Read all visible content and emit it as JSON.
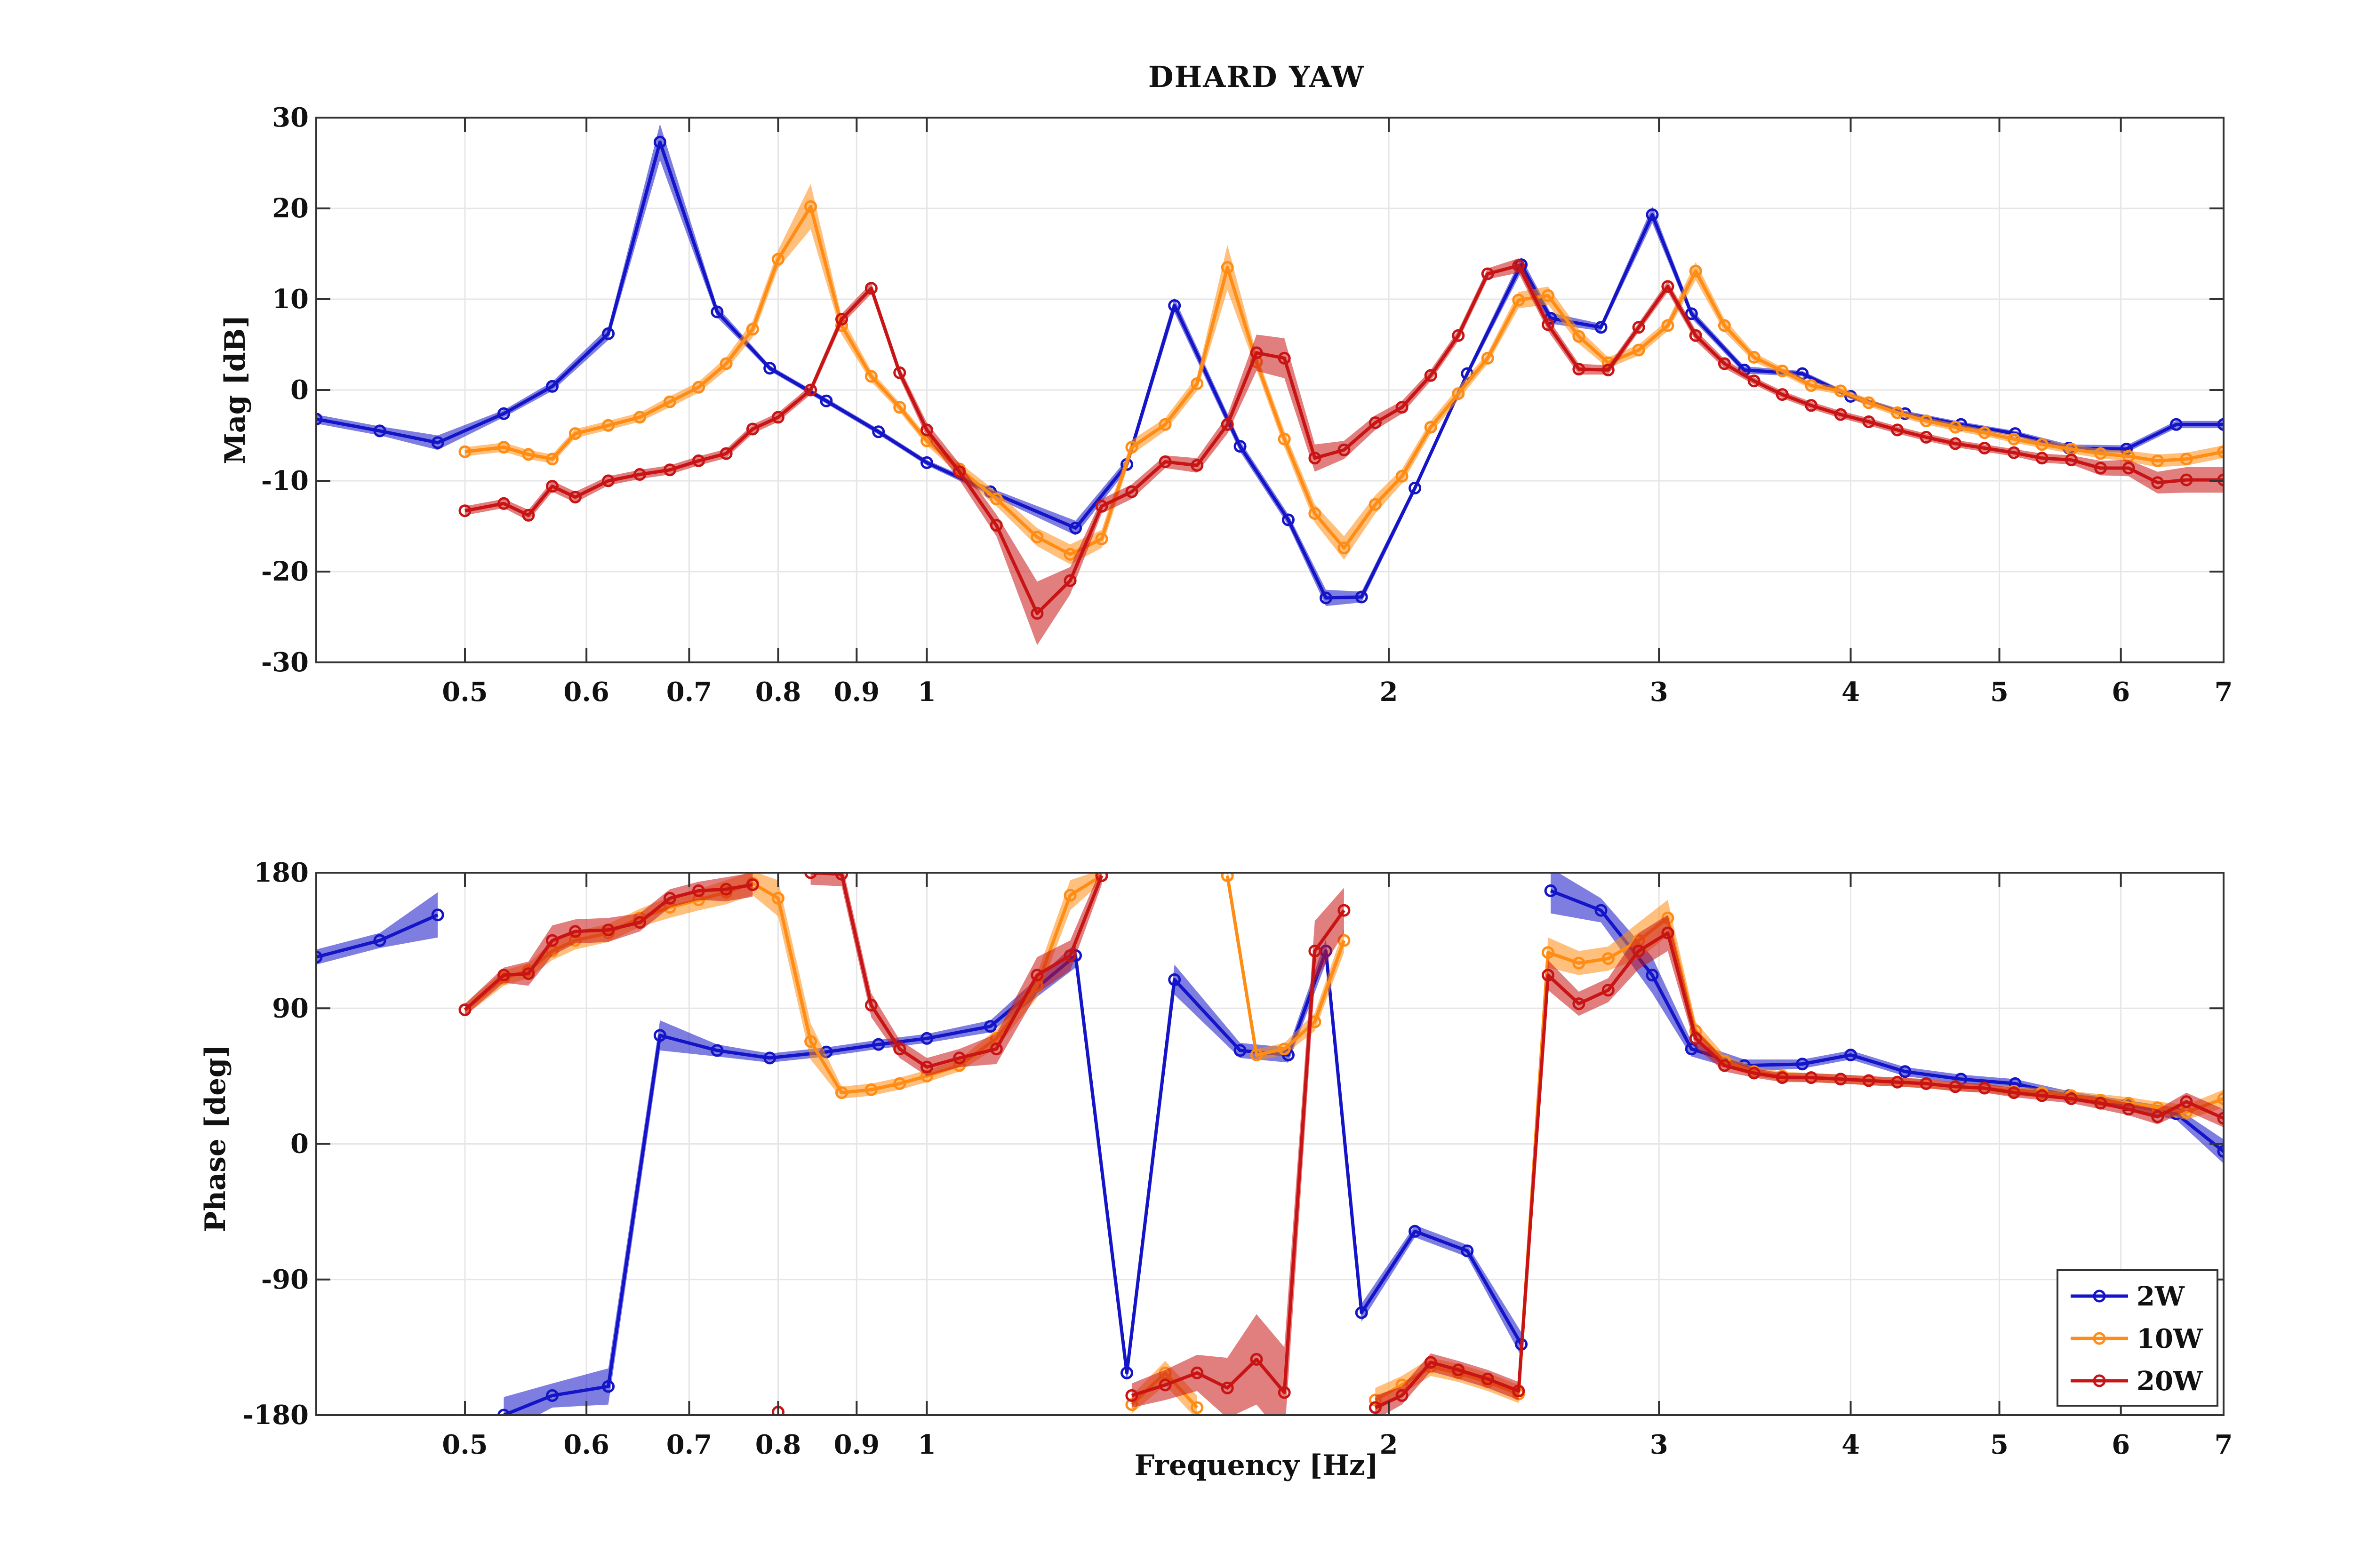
{
  "chart_data": {
    "type": "line",
    "title": "DHARD  YAW",
    "xlabel": "Frequency [Hz]",
    "x_scale": "log",
    "xlim": [
      0.4,
      7
    ],
    "x_ticks": [
      0.5,
      0.6,
      0.7,
      0.8,
      0.9,
      1,
      2,
      3,
      4,
      5,
      6,
      7
    ],
    "x_tick_labels": [
      "0.5",
      "0.6",
      "0.7",
      "0.8",
      "0.9",
      "1",
      "2",
      "3",
      "4",
      "5",
      "6",
      "7"
    ],
    "grid": true,
    "legend": {
      "placement": "bottom-right",
      "panel": "phase",
      "entries": [
        "2W",
        "10W",
        "20W"
      ]
    },
    "colors": {
      "2W": "#1414c8",
      "10W": "#ff8c14",
      "20W": "#c81414"
    },
    "magnitude": {
      "ylabel": "Mag [dB]",
      "ylim": [
        -30,
        30
      ],
      "y_ticks": [
        30,
        20,
        10,
        0,
        -10,
        -20,
        -30
      ],
      "series": [
        {
          "name": "2W",
          "x": [
            0.4,
            0.44,
            0.48,
            0.53,
            0.57,
            0.62,
            0.67,
            0.73,
            0.79,
            0.86,
            0.93,
            1.0,
            1.1,
            1.25,
            1.35,
            1.45,
            1.6,
            1.72,
            1.82,
            1.92,
            2.08,
            2.25,
            2.44,
            2.55,
            2.75,
            2.97,
            3.15,
            3.41,
            3.72,
            4.0,
            4.34,
            4.72,
            5.12,
            5.55,
            6.05,
            6.52,
            7.0
          ],
          "y": [
            -3.2,
            -4.5,
            -5.8,
            -2.6,
            0.4,
            6.2,
            27.3,
            8.6,
            2.4,
            -1.2,
            -4.6,
            -8.0,
            -11.2,
            -15.2,
            -8.2,
            9.3,
            -6.2,
            -14.3,
            -22.9,
            -22.8,
            -10.8,
            1.8,
            13.8,
            7.9,
            6.9,
            19.3,
            8.4,
            2.2,
            1.8,
            -0.7,
            -2.6,
            -3.8,
            -4.8,
            -6.4,
            -6.5,
            -3.8,
            -3.8
          ],
          "band": [
            0.5,
            0.5,
            0.8,
            0.4,
            0.5,
            0.7,
            2.0,
            0.6,
            0.3,
            0.3,
            0.3,
            0.3,
            0.4,
            0.8,
            0.6,
            0.8,
            0.6,
            0.6,
            0.9,
            0.6,
            0.4,
            0.4,
            0.8,
            0.6,
            0.4,
            0.9,
            0.5,
            0.4,
            0.3,
            0.3,
            0.3,
            0.3,
            0.3,
            0.4,
            0.4,
            0.4,
            0.4
          ]
        },
        {
          "name": "10W",
          "x": [
            0.5,
            0.53,
            0.55,
            0.57,
            0.59,
            0.62,
            0.65,
            0.68,
            0.71,
            0.74,
            0.77,
            0.8,
            0.84,
            0.88,
            0.92,
            0.96,
            1.0,
            1.05,
            1.11,
            1.18,
            1.24,
            1.3,
            1.36,
            1.43,
            1.5,
            1.57,
            1.64,
            1.71,
            1.79,
            1.87,
            1.96,
            2.04,
            2.13,
            2.22,
            2.32,
            2.43,
            2.54,
            2.66,
            2.78,
            2.91,
            3.04,
            3.17,
            3.31,
            3.46,
            3.61,
            3.77,
            3.94,
            4.11,
            4.29,
            4.48,
            4.68,
            4.89,
            5.11,
            5.33,
            5.57,
            5.82,
            6.07,
            6.34,
            6.62,
            7.0
          ],
          "y": [
            -6.8,
            -6.3,
            -7.1,
            -7.6,
            -4.8,
            -3.9,
            -3.0,
            -1.3,
            0.3,
            2.9,
            6.7,
            14.4,
            20.2,
            7.1,
            1.5,
            -1.9,
            -5.6,
            -8.7,
            -12.0,
            -16.2,
            -18.1,
            -16.4,
            -6.3,
            -3.8,
            0.7,
            13.5,
            3.1,
            -5.4,
            -13.6,
            -17.4,
            -12.6,
            -9.5,
            -4.1,
            -0.4,
            3.5,
            9.9,
            10.4,
            5.9,
            3.0,
            4.4,
            7.1,
            13.1,
            7.1,
            3.6,
            2.1,
            0.5,
            -0.1,
            -1.4,
            -2.5,
            -3.4,
            -4.1,
            -4.7,
            -5.4,
            -6.0,
            -6.5,
            -7.0,
            -7.3,
            -7.8,
            -7.6,
            -6.8
          ],
          "band": [
            0.5,
            0.5,
            0.5,
            0.5,
            0.5,
            0.5,
            0.5,
            0.6,
            0.6,
            0.7,
            0.9,
            1.0,
            2.5,
            1.0,
            0.6,
            0.5,
            0.5,
            0.7,
            0.8,
            1.0,
            1.1,
            1.0,
            0.8,
            0.7,
            0.8,
            2.5,
            0.9,
            0.9,
            1.0,
            1.3,
            1.0,
            0.8,
            0.7,
            0.7,
            0.6,
            0.9,
            1.0,
            0.8,
            0.6,
            0.6,
            0.6,
            1.0,
            0.7,
            0.5,
            0.4,
            0.4,
            0.4,
            0.4,
            0.4,
            0.4,
            0.4,
            0.4,
            0.4,
            0.4,
            0.5,
            0.5,
            0.6,
            0.7,
            0.7,
            0.7
          ]
        },
        {
          "name": "20W",
          "x": [
            0.5,
            0.53,
            0.55,
            0.57,
            0.59,
            0.62,
            0.65,
            0.68,
            0.71,
            0.74,
            0.77,
            0.8,
            0.84,
            0.88,
            0.92,
            0.96,
            1.0,
            1.05,
            1.11,
            1.18,
            1.24,
            1.3,
            1.36,
            1.43,
            1.5,
            1.57,
            1.64,
            1.71,
            1.79,
            1.87,
            1.96,
            2.04,
            2.13,
            2.22,
            2.32,
            2.43,
            2.54,
            2.66,
            2.78,
            2.91,
            3.04,
            3.17,
            3.31,
            3.46,
            3.61,
            3.77,
            3.94,
            4.11,
            4.29,
            4.48,
            4.68,
            4.89,
            5.11,
            5.33,
            5.57,
            5.82,
            6.07,
            6.34,
            6.62,
            7.0
          ],
          "y": [
            -13.3,
            -12.5,
            -13.8,
            -10.6,
            -11.8,
            -10.0,
            -9.3,
            -8.8,
            -7.8,
            -7.0,
            -4.3,
            -3.0,
            0.0,
            7.8,
            11.2,
            1.9,
            -4.4,
            -9.0,
            -14.9,
            -24.6,
            -21.0,
            -12.8,
            -11.2,
            -7.9,
            -8.3,
            -3.8,
            4.1,
            3.5,
            -7.5,
            -6.6,
            -3.6,
            -1.9,
            1.6,
            6.0,
            12.8,
            13.7,
            7.2,
            2.3,
            2.2,
            6.9,
            11.4,
            6.0,
            2.9,
            1.0,
            -0.5,
            -1.7,
            -2.7,
            -3.5,
            -4.4,
            -5.2,
            -5.9,
            -6.4,
            -6.9,
            -7.5,
            -7.7,
            -8.6,
            -8.6,
            -10.2,
            -9.9,
            -9.9
          ],
          "band": [
            0.5,
            0.5,
            0.6,
            0.6,
            0.6,
            0.5,
            0.5,
            0.5,
            0.5,
            0.5,
            0.5,
            0.5,
            0.5,
            0.6,
            0.6,
            0.6,
            0.8,
            0.9,
            1.2,
            3.5,
            1.5,
            0.8,
            0.8,
            0.7,
            0.8,
            1.0,
            2.0,
            2.2,
            1.5,
            1.0,
            0.8,
            0.7,
            0.6,
            0.6,
            0.6,
            0.8,
            0.7,
            0.6,
            0.5,
            0.5,
            0.6,
            0.6,
            0.5,
            0.4,
            0.4,
            0.4,
            0.4,
            0.4,
            0.4,
            0.4,
            0.4,
            0.4,
            0.4,
            0.5,
            0.5,
            0.8,
            0.9,
            1.2,
            1.4,
            1.4
          ]
        }
      ]
    },
    "phase": {
      "ylabel": "Phase [deg]",
      "ylim": [
        -180,
        180
      ],
      "y_ticks": [
        180,
        90,
        0,
        -90,
        -180
      ],
      "series": [
        {
          "name": "2W",
          "x": [
            0.4,
            0.44,
            0.48,
            0.53,
            0.57,
            0.62,
            0.67,
            0.73,
            0.79,
            0.86,
            0.93,
            1.0,
            1.1,
            1.25,
            1.35,
            1.45,
            1.6,
            1.72,
            1.82,
            1.92,
            2.08,
            2.25,
            2.44,
            2.55,
            2.75,
            2.97,
            3.15,
            3.41,
            3.72,
            4.0,
            4.34,
            4.72,
            5.12,
            5.55,
            6.05,
            6.52,
            7.0
          ],
          "y": [
            124,
            135,
            152,
            -180,
            -167,
            -161,
            72,
            62,
            57,
            61,
            66,
            70,
            78,
            125,
            -152,
            109,
            62,
            59,
            128,
            -112,
            -58,
            -71,
            -133,
            168,
            155,
            112,
            63,
            52,
            53,
            59,
            48,
            43,
            40,
            32,
            26,
            20,
            -5
          ],
          "band": [
            5,
            5,
            15,
            12,
            8,
            12,
            10,
            4,
            3,
            3,
            3,
            3,
            4,
            8,
            6,
            10,
            5,
            5,
            8,
            6,
            4,
            4,
            8,
            15,
            8,
            12,
            5,
            4,
            3,
            3,
            3,
            3,
            3,
            3,
            3,
            4,
            8
          ]
        },
        {
          "name": "10W",
          "x": [
            0.5,
            0.53,
            0.55,
            0.57,
            0.59,
            0.62,
            0.65,
            0.68,
            0.71,
            0.74,
            0.77,
            0.8,
            0.84,
            0.88,
            0.92,
            0.96,
            1.0,
            1.05,
            1.11,
            1.18,
            1.24,
            1.3,
            1.36,
            1.43,
            1.5,
            1.57,
            1.64,
            1.71,
            1.79,
            1.87,
            1.96,
            2.04,
            2.13,
            2.22,
            2.32,
            2.43,
            2.54,
            2.66,
            2.78,
            2.91,
            3.04,
            3.17,
            3.31,
            3.46,
            3.61,
            3.77,
            3.94,
            4.11,
            4.29,
            4.48,
            4.68,
            4.89,
            5.11,
            5.33,
            5.57,
            5.82,
            6.07,
            6.34,
            6.62,
            7.0
          ],
          "y": [
            89,
            110,
            115,
            128,
            135,
            140,
            150,
            157,
            162,
            167,
            173,
            163,
            68,
            34,
            36,
            40,
            45,
            52,
            70,
            105,
            165,
            178,
            -173,
            -152,
            -175,
            178,
            59,
            63,
            81,
            135,
            -170,
            -160,
            -148,
            -152,
            -158,
            -166,
            127,
            120,
            123,
            135,
            150,
            75,
            55,
            48,
            45,
            44,
            43,
            42,
            41,
            40,
            38,
            37,
            35,
            34,
            32,
            29,
            27,
            24,
            21,
            30
          ],
          "band": [
            4,
            5,
            5,
            6,
            6,
            6,
            6,
            7,
            7,
            8,
            8,
            12,
            12,
            4,
            4,
            4,
            4,
            4,
            6,
            8,
            10,
            4,
            6,
            8,
            8,
            4,
            4,
            4,
            6,
            8,
            8,
            6,
            6,
            6,
            6,
            6,
            10,
            8,
            8,
            12,
            12,
            6,
            4,
            3,
            3,
            3,
            3,
            3,
            3,
            3,
            3,
            3,
            3,
            3,
            3,
            4,
            4,
            4,
            5,
            6
          ]
        },
        {
          "name": "20W",
          "x": [
            0.5,
            0.53,
            0.55,
            0.57,
            0.59,
            0.62,
            0.65,
            0.68,
            0.71,
            0.74,
            0.77,
            0.8,
            0.84,
            0.88,
            0.92,
            0.96,
            1.0,
            1.05,
            1.11,
            1.18,
            1.24,
            1.3,
            1.36,
            1.43,
            1.5,
            1.57,
            1.64,
            1.71,
            1.79,
            1.87,
            1.96,
            2.04,
            2.13,
            2.22,
            2.32,
            2.43,
            2.54,
            2.66,
            2.78,
            2.91,
            3.04,
            3.17,
            3.31,
            3.46,
            3.61,
            3.77,
            3.94,
            4.11,
            4.29,
            4.48,
            4.68,
            4.89,
            5.11,
            5.33,
            5.57,
            5.82,
            6.07,
            6.34,
            6.62,
            7.0
          ],
          "y": [
            89,
            112,
            113,
            135,
            141,
            142,
            147,
            163,
            168,
            169,
            172,
            -178,
            180,
            179,
            92,
            63,
            51,
            57,
            63,
            112,
            125,
            178,
            -167,
            -160,
            -152,
            -162,
            -143,
            -165,
            128,
            155,
            -175,
            -167,
            -145,
            -150,
            -156,
            -164,
            112,
            93,
            102,
            128,
            140,
            70,
            52,
            47,
            44,
            44,
            43,
            42,
            41,
            40,
            38,
            37,
            34,
            32,
            30,
            27,
            23,
            18,
            28,
            17
          ],
          "band": [
            4,
            5,
            8,
            10,
            8,
            8,
            6,
            6,
            6,
            8,
            8,
            8,
            8,
            8,
            8,
            6,
            6,
            6,
            10,
            12,
            10,
            6,
            8,
            10,
            12,
            20,
            30,
            30,
            20,
            15,
            8,
            6,
            6,
            6,
            6,
            6,
            10,
            8,
            8,
            12,
            12,
            6,
            4,
            3,
            3,
            3,
            3,
            3,
            3,
            3,
            3,
            3,
            3,
            3,
            3,
            4,
            4,
            5,
            6,
            6
          ]
        }
      ]
    }
  }
}
